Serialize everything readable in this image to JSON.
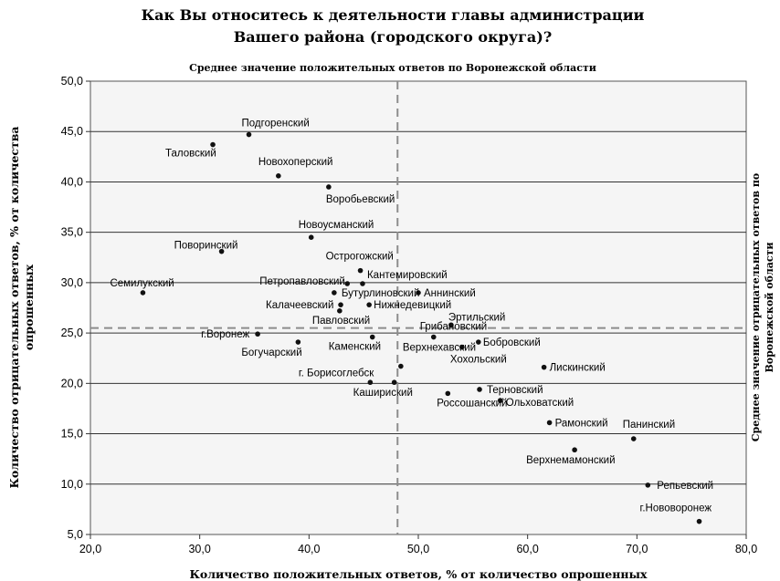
{
  "chart_data": {
    "type": "scatter",
    "title": [
      "Как Вы относитесь к деятельности главы администрации",
      "Вашего района (городского округа)?"
    ],
    "subtitle": "Среднее значение положительных ответов по Воронежской области",
    "xlabel": "Количество положительных ответов, % от количество опрошенных",
    "ylabel": [
      "Количество отрицательных ответов, % от количества",
      "опрошенных"
    ],
    "right_label": [
      "Среднее значение отрицательных ответов по",
      "Воронежской области"
    ],
    "xlim": [
      20,
      80
    ],
    "ylim": [
      5,
      50
    ],
    "x_ticks": [
      "20,0",
      "30,0",
      "40,0",
      "50,0",
      "60,0",
      "70,0",
      "80,0"
    ],
    "y_ticks": [
      "5,0",
      "10,0",
      "15,0",
      "20,0",
      "25,0",
      "30,0",
      "35,0",
      "40,0",
      "45,0",
      "50,0"
    ],
    "grid": "horizontal",
    "avg_x": 48.1,
    "avg_y": 25.5,
    "points": [
      {
        "name": "Подгоренский",
        "x": 34.5,
        "y": 44.7
      },
      {
        "name": "Таловский",
        "x": 31.2,
        "y": 43.7
      },
      {
        "name": "Новохоперский",
        "x": 37.2,
        "y": 40.6
      },
      {
        "name": "Воробьевский",
        "x": 41.8,
        "y": 39.5
      },
      {
        "name": "Новоусманский",
        "x": 40.2,
        "y": 34.5
      },
      {
        "name": "Поворинский",
        "x": 32.0,
        "y": 33.1
      },
      {
        "name": "Острогожский",
        "x": 44.7,
        "y": 31.2
      },
      {
        "name": "Петропавловский",
        "x": 43.5,
        "y": 29.9
      },
      {
        "name": "Кантемировский",
        "x": 44.9,
        "y": 29.9
      },
      {
        "name": "Семилукский",
        "x": 24.8,
        "y": 29.0
      },
      {
        "name": "Бутурлиновский",
        "x": 42.3,
        "y": 29.0
      },
      {
        "name": "Аннинский",
        "x": 50.0,
        "y": 29.0
      },
      {
        "name": "Калачеевский",
        "x": 42.9,
        "y": 27.8
      },
      {
        "name": "Нижнедевицкий",
        "x": 45.5,
        "y": 27.8
      },
      {
        "name": "Павловский",
        "x": 42.8,
        "y": 27.2
      },
      {
        "name": "Эртильский",
        "x": 53.0,
        "y": 25.8
      },
      {
        "name": "г.Воронеж",
        "x": 35.3,
        "y": 24.9
      },
      {
        "name": "Грибановский",
        "x": 51.4,
        "y": 24.6
      },
      {
        "name": "Каменский",
        "x": 45.8,
        "y": 24.6
      },
      {
        "name": "Богучарский",
        "x": 39.0,
        "y": 24.1
      },
      {
        "name": "Бобровский",
        "x": 55.5,
        "y": 24.1
      },
      {
        "name": "Верхнехавский",
        "x": 54.0,
        "y": 23.6
      },
      {
        "name": "Лискинский",
        "x": 61.5,
        "y": 21.6
      },
      {
        "name": "г. Борисоглебск",
        "x": 48.4,
        "y": 21.7
      },
      {
        "name": "Хохольский",
        "x": 48.4,
        "y": 21.7,
        "label_only": true
      },
      {
        "name": "Кашириский_dot",
        "x": 45.6,
        "y": 20.1,
        "dot_only": true
      },
      {
        "name": "Кашириский_dot2",
        "x": 47.8,
        "y": 20.1,
        "dot_only": true
      },
      {
        "name": "Кашириский",
        "x": 47.8,
        "y": 20.1,
        "label_only": true
      },
      {
        "name": "Терновский",
        "x": 55.6,
        "y": 19.4
      },
      {
        "name": "Россошанский",
        "x": 52.7,
        "y": 19.0
      },
      {
        "name": "Ольховатский",
        "x": 57.5,
        "y": 18.3
      },
      {
        "name": "Рамонский",
        "x": 62.0,
        "y": 16.1
      },
      {
        "name": "Панинский",
        "x": 69.7,
        "y": 14.5
      },
      {
        "name": "Верхнемамонский",
        "x": 64.3,
        "y": 13.4
      },
      {
        "name": "Репьевский",
        "x": 71.0,
        "y": 9.9
      },
      {
        "name": "г.Нововоронеж",
        "x": 75.7,
        "y": 6.3
      }
    ]
  }
}
